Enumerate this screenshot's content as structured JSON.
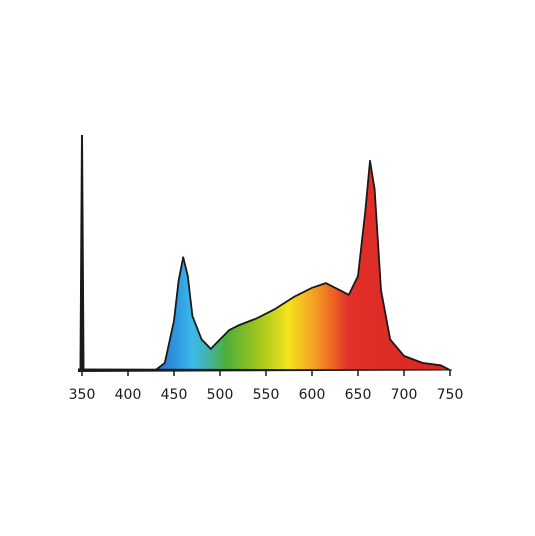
{
  "chart_data": {
    "type": "area",
    "x": [
      350,
      400,
      430,
      440,
      450,
      455,
      460,
      465,
      470,
      480,
      490,
      500,
      510,
      520,
      540,
      560,
      580,
      600,
      615,
      630,
      640,
      650,
      658,
      663,
      668,
      675,
      685,
      700,
      720,
      740,
      750
    ],
    "y": [
      0,
      0,
      0,
      0.03,
      0.21,
      0.38,
      0.48,
      0.4,
      0.23,
      0.13,
      0.09,
      0.13,
      0.17,
      0.19,
      0.22,
      0.26,
      0.31,
      0.35,
      0.37,
      0.34,
      0.32,
      0.4,
      0.68,
      0.89,
      0.77,
      0.34,
      0.13,
      0.06,
      0.03,
      0.02,
      0
    ],
    "line_color": "#1a1a1a",
    "xlim": [
      350,
      750
    ],
    "ylim": [
      0,
      1
    ],
    "xticks": [
      350,
      400,
      450,
      500,
      550,
      600,
      650,
      700,
      750
    ]
  }
}
